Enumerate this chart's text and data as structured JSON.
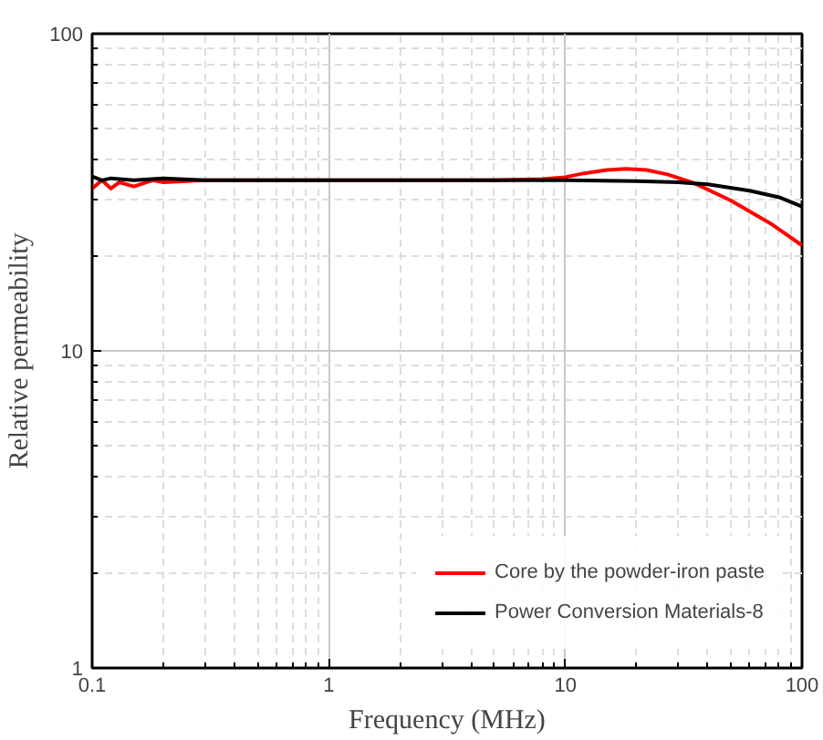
{
  "chart_data": {
    "type": "line",
    "xlabel": "Frequency (MHz)",
    "ylabel": "Relative permeability",
    "log": "xy",
    "xlim": [
      0.1,
      100
    ],
    "xticks": [
      0.1,
      1,
      10,
      100
    ],
    "ylim": [
      1,
      100
    ],
    "yticks": [
      1,
      10,
      100
    ],
    "grid": true,
    "legend": "bottom right",
    "line_style": "solid",
    "marker": "none",
    "series": [
      {
        "name": "Core by the powder-iron paste",
        "color": "#ff0000",
        "x": [
          0.1,
          0.11,
          0.12,
          0.13,
          0.15,
          0.18,
          0.2,
          0.3,
          0.5,
          1,
          2,
          5,
          8,
          10,
          12,
          15,
          18,
          22,
          27,
          35,
          50,
          75,
          100
        ],
        "values": [
          32.5,
          34.5,
          32.5,
          34,
          33,
          34.5,
          34,
          34.5,
          34.5,
          34.5,
          34.5,
          34.5,
          34.8,
          35.3,
          36.3,
          37.2,
          37.5,
          37.2,
          36,
          33.8,
          29.8,
          25,
          21.5
        ]
      },
      {
        "name": "Power Conversion Materials-8",
        "color": "#000000",
        "x": [
          0.1,
          0.11,
          0.12,
          0.15,
          0.2,
          0.3,
          0.5,
          1,
          2,
          5,
          10,
          20,
          30,
          40,
          60,
          80,
          100
        ],
        "values": [
          35.5,
          34.5,
          35,
          34.5,
          35,
          34.5,
          34.5,
          34.5,
          34.5,
          34.5,
          34.5,
          34.3,
          34,
          33.5,
          32,
          30.5,
          28.5
        ]
      }
    ]
  }
}
